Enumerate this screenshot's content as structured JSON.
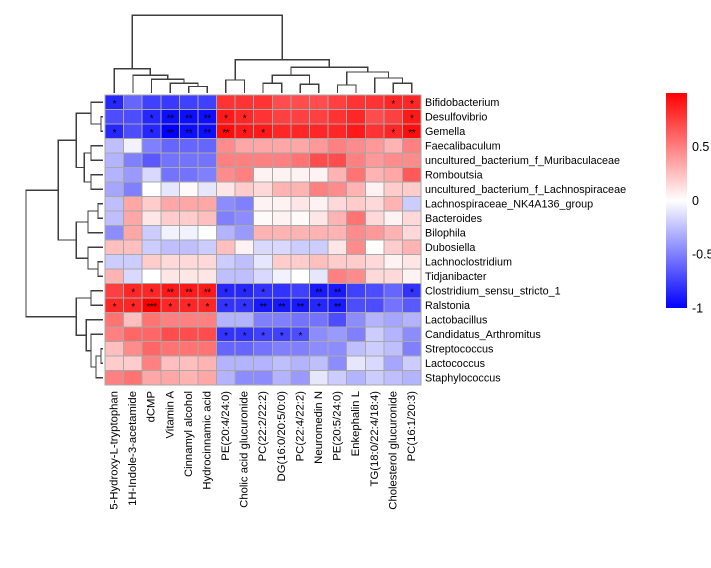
{
  "figure_type": "clustered-correlation-heatmap",
  "chart_data": {
    "type": "heatmap",
    "rows": [
      "Bifidobacterium",
      "Desulfovibrio",
      "Gemella",
      "Faecalibaculum",
      "uncultured_bacterium_f_Muribaculaceae",
      "Romboutsia",
      "uncultured_bacterium_f_Lachnospiraceae",
      "Lachnospiraceae_NK4A136_group",
      "Bacteroides",
      "Bilophila",
      "Dubosiella",
      "Lachnoclostridium",
      "Tidjanibacter",
      "Clostridium_sensu_stricto_1",
      "Ralstonia",
      "Lactobacillus",
      "Candidatus_Arthromitus",
      "Streptococcus",
      "Lactococcus",
      "Staphylococcus"
    ],
    "columns": [
      "5-Hydroxy-L-tryptophan",
      "1H-Indole-3-acetamide",
      "dCMP",
      "Vitamin A",
      "Cinnamyl alcohol",
      "Hydrocinnamic acid",
      "PE(20:4/24:0)",
      "Cholic acid glucuronide",
      "PC(22:2/22:2)",
      "DG(16:0/20:5/0:0)",
      "PC(22:4/22:2)",
      "Neuromedin N",
      "PE(20:5/24:0)",
      "Enkephalin L",
      "TG(18:0/22:4/18:4)",
      "Cholesterol glucuronide",
      "PC(16:1/20:3)"
    ],
    "values": [
      [
        -0.85,
        -0.6,
        -0.75,
        -0.78,
        -0.75,
        -0.75,
        0.8,
        0.8,
        0.8,
        0.7,
        0.7,
        0.7,
        0.75,
        0.8,
        0.8,
        0.85,
        0.85
      ],
      [
        -0.7,
        -0.7,
        -0.85,
        -0.95,
        -0.95,
        -0.95,
        0.9,
        0.85,
        0.8,
        0.75,
        0.75,
        0.75,
        0.8,
        0.85,
        0.7,
        0.75,
        0.9
      ],
      [
        -0.85,
        -0.7,
        -0.85,
        -1.0,
        -0.95,
        -0.95,
        0.95,
        0.9,
        0.9,
        0.85,
        0.85,
        0.85,
        0.85,
        0.9,
        0.8,
        0.85,
        0.95
      ],
      [
        -0.25,
        -0.05,
        -0.5,
        -0.6,
        -0.6,
        -0.6,
        0.45,
        0.35,
        0.35,
        0.35,
        0.35,
        0.4,
        0.5,
        0.45,
        0.4,
        0.3,
        0.5
      ],
      [
        -0.3,
        -0.5,
        -0.65,
        -0.55,
        -0.55,
        -0.55,
        0.5,
        0.5,
        0.5,
        0.5,
        0.55,
        0.7,
        0.7,
        0.5,
        0.4,
        0.45,
        0.45
      ],
      [
        -0.3,
        -0.4,
        -0.15,
        -0.55,
        -0.55,
        -0.5,
        0.45,
        0.5,
        0.05,
        0.05,
        0.05,
        0.05,
        0.3,
        0.55,
        0.3,
        0.35,
        0.65
      ],
      [
        -0.35,
        -0.5,
        0,
        -0.1,
        0.02,
        -0.1,
        0.1,
        0.2,
        0.15,
        0.3,
        0.3,
        0.5,
        0.45,
        0.3,
        0.05,
        0.2,
        0.2
      ],
      [
        -0.25,
        0.35,
        0.2,
        0.35,
        0.35,
        0.35,
        -0.45,
        -0.5,
        0.05,
        0.05,
        0.1,
        0.05,
        0.15,
        0.2,
        0.15,
        0.3,
        -0.2
      ],
      [
        -0.25,
        0.35,
        0.1,
        0.2,
        0.2,
        0.25,
        -0.5,
        -0.45,
        0.02,
        0.05,
        0.02,
        0.1,
        0.3,
        0.55,
        0.15,
        0.05,
        0.15
      ],
      [
        -0.45,
        0.35,
        -0.2,
        -0.05,
        -0.05,
        0,
        -0.3,
        -0.4,
        0.3,
        0.3,
        0.3,
        0.3,
        0.3,
        0.45,
        0.4,
        0.3,
        0.15
      ],
      [
        0.25,
        0.25,
        -0.2,
        -0.25,
        -0.25,
        -0.2,
        0.25,
        0.05,
        -0.15,
        -0.15,
        -0.2,
        -0.2,
        0.1,
        0.45,
        0,
        0.2,
        0.3
      ],
      [
        -0.2,
        -0.2,
        0.2,
        0.15,
        0.15,
        0.15,
        -0.2,
        -0.25,
        -0.1,
        0.2,
        0.2,
        0.25,
        0.2,
        0.2,
        0.15,
        0.05,
        0.1
      ],
      [
        0.3,
        -0.15,
        0,
        0.1,
        0.1,
        0.1,
        -0.25,
        -0.25,
        -0.15,
        -0.05,
        0,
        -0.1,
        0.5,
        0.45,
        0.15,
        0.15,
        0.05
      ],
      [
        0.75,
        0.85,
        0.85,
        0.9,
        0.9,
        0.9,
        -0.85,
        -0.85,
        -0.8,
        -0.8,
        -0.75,
        -0.9,
        -0.9,
        -0.75,
        -0.7,
        -0.6,
        -0.8
      ],
      [
        0.85,
        0.85,
        1.0,
        0.85,
        0.85,
        0.85,
        -0.8,
        -0.8,
        -0.9,
        -0.9,
        -0.9,
        -0.85,
        -0.9,
        -0.7,
        -0.7,
        -0.55,
        -0.65
      ],
      [
        0.55,
        0.25,
        0.55,
        0.5,
        0.5,
        0.5,
        -0.3,
        -0.3,
        -0.5,
        -0.5,
        -0.55,
        -0.55,
        -0.7,
        -0.45,
        -0.3,
        -0.35,
        -0.3
      ],
      [
        0.5,
        0.6,
        0.6,
        0.7,
        0.7,
        0.7,
        -0.8,
        -0.8,
        -0.75,
        -0.75,
        -0.7,
        -0.45,
        -0.4,
        -0.5,
        -0.2,
        -0.3,
        -0.45
      ],
      [
        0.25,
        0.45,
        0.6,
        0.55,
        0.55,
        0.55,
        -0.6,
        -0.6,
        -0.55,
        -0.5,
        -0.5,
        -0.45,
        -0.45,
        -0.25,
        -0.2,
        -0.25,
        -0.5
      ],
      [
        0.2,
        0.2,
        0.5,
        0.25,
        0.25,
        0.3,
        -0.3,
        -0.3,
        -0.3,
        -0.25,
        -0.3,
        -0.25,
        -0.45,
        -0.1,
        -0.15,
        -0.35,
        -0.2
      ],
      [
        0.5,
        0.55,
        0.35,
        0.35,
        0.3,
        0.35,
        -0.3,
        -0.45,
        -0.45,
        -0.3,
        -0.4,
        -0.1,
        -0.2,
        -0.3,
        -0.2,
        -0.25,
        -0.3
      ]
    ],
    "significance": [
      [
        "*",
        "",
        "",
        "",
        "",
        "",
        "",
        "",
        "",
        "",
        "",
        "",
        "",
        "",
        "",
        "*",
        "*"
      ],
      [
        "",
        "",
        "*",
        "**",
        "**",
        "**",
        "*",
        "*",
        "",
        "",
        "",
        "",
        "",
        "",
        "",
        "",
        "*"
      ],
      [
        "*",
        "",
        "*",
        "**",
        "**",
        "**",
        "**",
        "*",
        "*",
        "",
        "",
        "",
        "",
        "",
        "",
        "*",
        "**"
      ],
      [
        "",
        "",
        "",
        "",
        "",
        "",
        "",
        "",
        "",
        "",
        "",
        "",
        "",
        "",
        "",
        "",
        ""
      ],
      [
        "",
        "",
        "",
        "",
        "",
        "",
        "",
        "",
        "",
        "",
        "",
        "",
        "",
        "",
        "",
        "",
        ""
      ],
      [
        "",
        "",
        "",
        "",
        "",
        "",
        "",
        "",
        "",
        "",
        "",
        "",
        "",
        "",
        "",
        "",
        ""
      ],
      [
        "",
        "",
        "",
        "",
        "",
        "",
        "",
        "",
        "",
        "",
        "",
        "",
        "",
        "",
        "",
        "",
        ""
      ],
      [
        "",
        "",
        "",
        "",
        "",
        "",
        "",
        "",
        "",
        "",
        "",
        "",
        "",
        "",
        "",
        "",
        ""
      ],
      [
        "",
        "",
        "",
        "",
        "",
        "",
        "",
        "",
        "",
        "",
        "",
        "",
        "",
        "",
        "",
        "",
        ""
      ],
      [
        "",
        "",
        "",
        "",
        "",
        "",
        "",
        "",
        "",
        "",
        "",
        "",
        "",
        "",
        "",
        "",
        ""
      ],
      [
        "",
        "",
        "",
        "",
        "",
        "",
        "",
        "",
        "",
        "",
        "",
        "",
        "",
        "",
        "",
        "",
        ""
      ],
      [
        "",
        "",
        "",
        "",
        "",
        "",
        "",
        "",
        "",
        "",
        "",
        "",
        "",
        "",
        "",
        "",
        ""
      ],
      [
        "",
        "",
        "",
        "",
        "",
        "",
        "",
        "",
        "",
        "",
        "",
        "",
        "",
        "",
        "",
        "",
        ""
      ],
      [
        "",
        "*",
        "*",
        "**",
        "**",
        "**",
        "*",
        "*",
        "*",
        "",
        "",
        "**",
        "**",
        "",
        "",
        "",
        "*"
      ],
      [
        "*",
        "*",
        "***",
        "*",
        "*",
        "*",
        "*",
        "*",
        "**",
        "**",
        "**",
        "*",
        "**",
        "",
        "",
        "",
        ""
      ],
      [
        "",
        "",
        "",
        "",
        "",
        "",
        "",
        "",
        "",
        "",
        "",
        "",
        "",
        "",
        "",
        "",
        ""
      ],
      [
        "",
        "",
        "",
        "",
        "",
        "",
        "*",
        "*",
        "*",
        "*",
        "*",
        "",
        "",
        "",
        "",
        "",
        ""
      ],
      [
        "",
        "",
        "",
        "",
        "",
        "",
        "",
        "",
        "",
        "",
        "",
        "",
        "",
        "",
        "",
        "",
        ""
      ],
      [
        "",
        "",
        "",
        "",
        "",
        "",
        "",
        "",
        "",
        "",
        "",
        "",
        "",
        "",
        "",
        "",
        ""
      ],
      [
        "",
        "",
        "",
        "",
        "",
        "",
        "",
        "",
        "",
        "",
        "",
        "",
        "",
        "",
        "",
        "",
        ""
      ]
    ],
    "legend": {
      "max": 1.0,
      "min": -1.0,
      "ticks": [
        {
          "label": "0.5",
          "value": 0.5
        },
        {
          "label": "0",
          "value": 0
        },
        {
          "label": "-0.5",
          "value": -0.5
        },
        {
          "label": "-1",
          "value": -1
        }
      ],
      "position": "right"
    },
    "colors": {
      "positive": "#ff0000",
      "zero": "#ffffff",
      "negative": "#0000ff",
      "grid": "#a8a8a8",
      "dendrogram": "#3e3e3e",
      "significance_marker": "#3b3b3b"
    },
    "column_dendrogram": {
      "h": 0.96,
      "c": [
        {
          "h": 0.3,
          "c": [
            0,
            {
              "h": 0.22,
              "c": [
                1,
                {
                  "h": 0.17,
                  "c": [
                    2,
                    {
                      "h": 0.12,
                      "c": [
                        3,
                        {
                          "h": 0.08,
                          "c": [
                            4,
                            5
                          ]
                        }
                      ]
                    }
                  ]
                }
              ]
            }
          ]
        },
        {
          "h": 0.41,
          "c": [
            {
              "h": 0.16,
              "c": [
                6,
                7
              ]
            },
            {
              "h": 0.32,
              "c": [
                {
                  "h": 0.22,
                  "c": [
                    {
                      "h": 0.12,
                      "c": [
                        8,
                        9
                      ]
                    },
                    {
                      "h": 0.11,
                      "c": [
                        10,
                        11
                      ]
                    }
                  ]
                },
                {
                  "h": 0.26,
                  "c": [
                    {
                      "h": 0.1,
                      "c": [
                        12,
                        13
                      ]
                    },
                    {
                      "h": 0.185,
                      "c": [
                        14,
                        {
                          "h": 0.12,
                          "c": [
                            15,
                            16
                          ]
                        }
                      ]
                    }
                  ]
                }
              ]
            }
          ]
        }
      ]
    },
    "row_dendrogram": {
      "h": 0.865,
      "c": [
        {
          "h": 0.505,
          "c": [
            {
              "h": 0.3,
              "c": [
                {
                  "h": 0.135,
                  "c": [
                    0,
                    {
                      "h": 0.022,
                      "c": [
                        1,
                        2
                      ]
                    }
                  ]
                },
                {
                  "h": 0.21,
                  "c": [
                    {
                      "h": 0.135,
                      "c": [
                        3,
                        4
                      ]
                    },
                    {
                      "h": 0.135,
                      "c": [
                        5,
                        6
                      ]
                    }
                  ]
                }
              ]
            },
            {
              "h": 0.3,
              "c": [
                {
                  "h": 0.17,
                  "c": [
                    {
                      "h": 0.056,
                      "c": [
                        7,
                        8
                      ]
                    },
                    9
                  ]
                },
                {
                  "h": 0.17,
                  "c": [
                    10,
                    {
                      "h": 0.056,
                      "c": [
                        11,
                        12
                      ]
                    }
                  ]
                }
              ]
            }
          ]
        },
        {
          "h": 0.3,
          "c": [
            {
              "h": 0.135,
              "c": [
                13,
                14
              ]
            },
            {
              "h": 0.19,
              "c": [
                15,
                {
                  "h": 0.135,
                  "c": [
                    16,
                    {
                      "h": 0.079,
                      "c": [
                        {
                          "h": 0.022,
                          "c": [
                            17,
                            18
                          ]
                        },
                        19
                      ]
                    }
                  ]
                }
              ]
            }
          ]
        }
      ]
    }
  }
}
